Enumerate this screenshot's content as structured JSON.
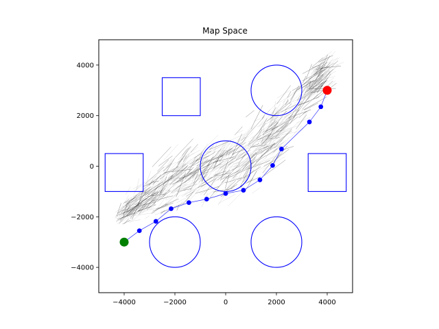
{
  "chart_data": {
    "type": "scatter",
    "title": "Map Space",
    "xlabel": "",
    "ylabel": "",
    "xlim": [
      -5000,
      5000
    ],
    "ylim": [
      -5000,
      5000
    ],
    "xticks": [
      -4000,
      -2000,
      0,
      2000,
      4000
    ],
    "yticks": [
      -4000,
      -2000,
      0,
      2000,
      4000
    ],
    "xtick_labels": [
      "−4000",
      "−2000",
      "0",
      "2000",
      "4000"
    ],
    "ytick_labels": [
      "−4000",
      "−2000",
      "0",
      "2000",
      "4000"
    ],
    "grid": false,
    "obstacles": {
      "color": "#0000ff",
      "squares": [
        {
          "x0": -2500,
          "y0": 2000,
          "x1": -1000,
          "y1": 3500
        },
        {
          "x0": -4750,
          "y0": -1000,
          "x1": -3250,
          "y1": 500
        },
        {
          "x0": 3250,
          "y0": -1000,
          "x1": 4750,
          "y1": 500
        }
      ],
      "circles": [
        {
          "cx": 2000,
          "cy": 3000,
          "r": 1000
        },
        {
          "cx": 0,
          "cy": 0,
          "r": 1000
        },
        {
          "cx": -2000,
          "cy": -3000,
          "r": 1000
        },
        {
          "cx": 2000,
          "cy": -3000,
          "r": 1000
        }
      ]
    },
    "start": {
      "x": -4000,
      "y": -3000,
      "color": "#008000"
    },
    "goal": {
      "x": 4000,
      "y": 3000,
      "color": "#ff0000"
    },
    "path": {
      "color": "#0000ff",
      "points": [
        [
          -4000,
          -3000
        ],
        [
          -3400,
          -2550
        ],
        [
          -2750,
          -2180
        ],
        [
          -2150,
          -1680
        ],
        [
          -1450,
          -1440
        ],
        [
          -750,
          -1300
        ],
        [
          0,
          -1080
        ],
        [
          700,
          -950
        ],
        [
          1350,
          -540
        ],
        [
          1850,
          30
        ],
        [
          2200,
          680
        ],
        [
          3300,
          1750
        ],
        [
          3750,
          2350
        ],
        [
          4000,
          3000
        ]
      ]
    },
    "tree": {
      "color": "#000000",
      "seed": 7,
      "edge_count": 900
    }
  }
}
